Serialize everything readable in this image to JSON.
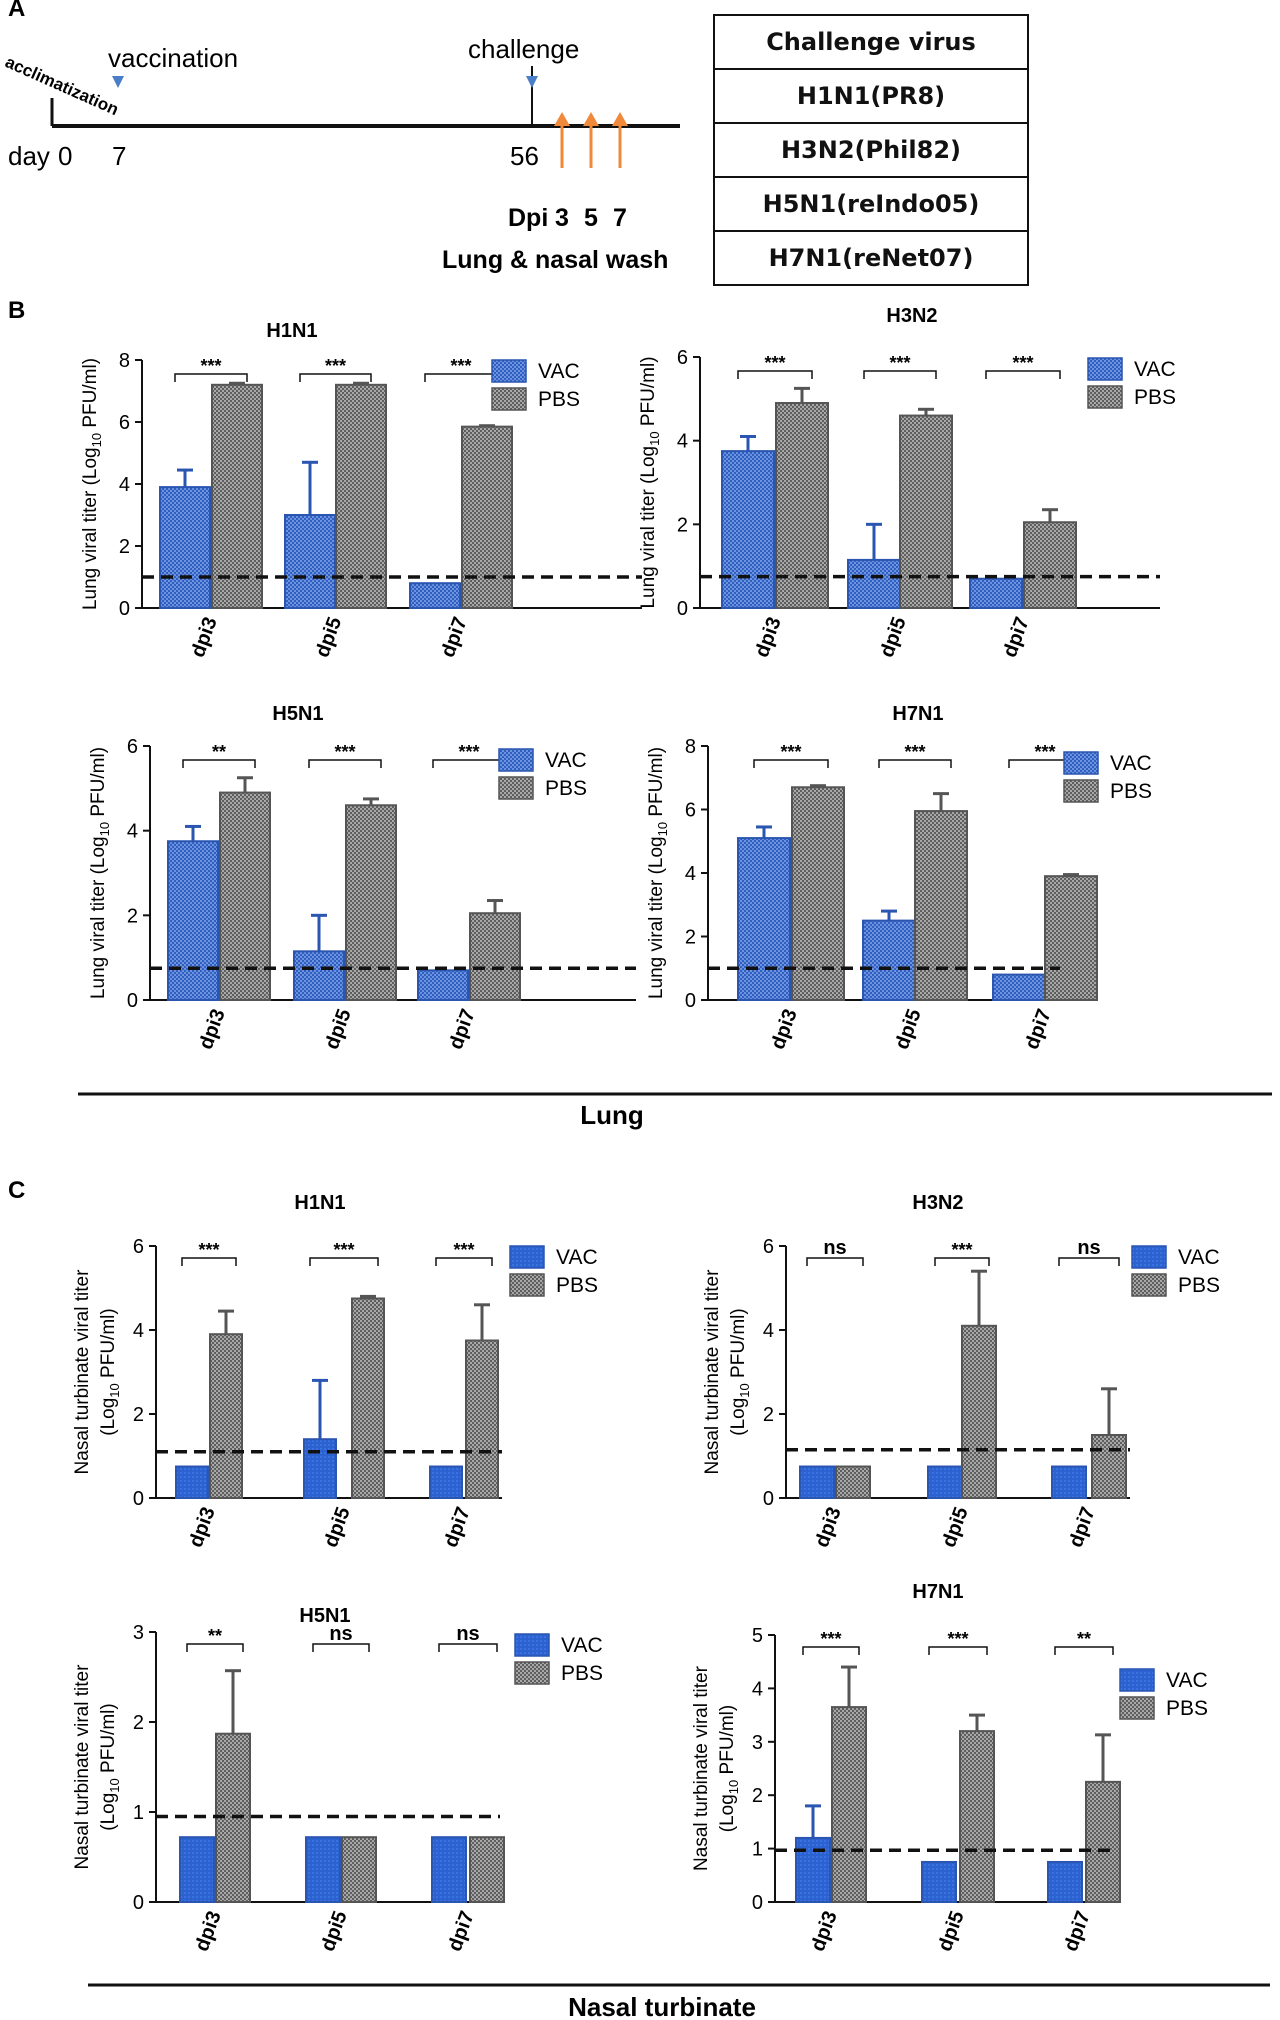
{
  "panels": {
    "a": "A",
    "b": "B",
    "c": "C"
  },
  "timeline": {
    "day_label": "day",
    "days": [
      "0",
      "7",
      "56"
    ],
    "acclimatization": "acclimatization",
    "vaccination": "vaccination",
    "challenge": "challenge",
    "dpi_label": "Dpi",
    "dpi_days": [
      "3",
      "5",
      "7"
    ],
    "sample_label": "Lung & nasal wash"
  },
  "challenge_table": {
    "header": "Challenge virus",
    "rows": [
      "H1N1(PR8)",
      "H3N2(Phil82)",
      "H5N1(reIndo05)",
      "H7N1(reNet07)"
    ]
  },
  "section_labels": {
    "lung": "Lung",
    "nasal": "Nasal turbinate"
  },
  "colors": {
    "vac": "#2f5fbf",
    "pbs": "#666666",
    "line": "#111111"
  },
  "chart_data": [
    {
      "type": "bar",
      "title": "H1N1",
      "section": "Lung",
      "ylabel": "Lung viral titer (Log10 PFU/ml)",
      "ylim": [
        0,
        8
      ],
      "yticks": [
        0,
        2,
        4,
        6,
        8
      ],
      "categories": [
        "dpi3",
        "dpi5",
        "dpi7"
      ],
      "threshold": 1.0,
      "legend": "top-right",
      "series": [
        {
          "name": "VAC",
          "values": [
            3.9,
            3.0,
            0.8
          ],
          "errors": [
            0.55,
            1.7,
            0
          ]
        },
        {
          "name": "PBS",
          "values": [
            7.2,
            7.2,
            5.85
          ],
          "errors": [
            0.05,
            0.05,
            0.03
          ]
        }
      ],
      "significance": [
        "***",
        "***",
        "***"
      ]
    },
    {
      "type": "bar",
      "title": "H3N2",
      "section": "Lung",
      "ylabel": "Lung viral titer (Log10 PFU/ml)",
      "ylim": [
        0,
        6
      ],
      "yticks": [
        0,
        2,
        4,
        6
      ],
      "categories": [
        "dpi3",
        "dpi5",
        "dpi7"
      ],
      "threshold": 0.75,
      "legend": "top-right",
      "series": [
        {
          "name": "VAC",
          "values": [
            3.75,
            1.15,
            0.7
          ],
          "errors": [
            0.35,
            0.85,
            0
          ]
        },
        {
          "name": "PBS",
          "values": [
            4.9,
            4.6,
            2.05
          ],
          "errors": [
            0.35,
            0.15,
            0.3
          ]
        }
      ],
      "significance": [
        "***",
        "***",
        "***"
      ]
    },
    {
      "type": "bar",
      "title": "H5N1",
      "section": "Lung",
      "ylabel": "Lung viral titer (Log10 PFU/ml)",
      "ylim": [
        0,
        6
      ],
      "yticks": [
        0,
        2,
        4,
        6
      ],
      "categories": [
        "dpi3",
        "dpi5",
        "dpi7"
      ],
      "threshold": 0.75,
      "legend": "top-right",
      "series": [
        {
          "name": "VAC",
          "values": [
            3.75,
            1.15,
            0.7
          ],
          "errors": [
            0.35,
            0.85,
            0
          ]
        },
        {
          "name": "PBS",
          "values": [
            4.9,
            4.6,
            2.05
          ],
          "errors": [
            0.35,
            0.15,
            0.3
          ]
        }
      ],
      "significance": [
        "**",
        "***",
        "***"
      ]
    },
    {
      "type": "bar",
      "title": "H7N1",
      "section": "Lung",
      "ylabel": "Lung viral titer (Log10 PFU/ml)",
      "ylim": [
        0,
        8
      ],
      "yticks": [
        0,
        2,
        4,
        6,
        8
      ],
      "categories": [
        "dpi3",
        "dpi5",
        "dpi7"
      ],
      "threshold": 1.0,
      "legend": "top-right",
      "series": [
        {
          "name": "VAC",
          "values": [
            5.1,
            2.5,
            0.8
          ],
          "errors": [
            0.35,
            0.3,
            0
          ]
        },
        {
          "name": "PBS",
          "values": [
            6.7,
            5.95,
            3.9
          ],
          "errors": [
            0.05,
            0.55,
            0.05
          ]
        }
      ],
      "significance": [
        "***",
        "***",
        "***"
      ]
    },
    {
      "type": "bar",
      "title": "H1N1",
      "section": "Nasal turbinate",
      "ylabel": "Nasal turbinate viral titer (Log10 PFU/ml)",
      "ylim": [
        0,
        6
      ],
      "yticks": [
        0,
        2,
        4,
        6
      ],
      "categories": [
        "dpi3",
        "dpi5",
        "dpi7"
      ],
      "threshold": 1.1,
      "legend": "top-right",
      "series": [
        {
          "name": "VAC",
          "values": [
            0.75,
            1.4,
            0.75
          ],
          "errors": [
            0,
            1.4,
            0
          ]
        },
        {
          "name": "PBS",
          "values": [
            3.9,
            4.75,
            3.75
          ],
          "errors": [
            0.55,
            0.05,
            0.85
          ]
        }
      ],
      "significance": [
        "***",
        "***",
        "***"
      ]
    },
    {
      "type": "bar",
      "title": "H3N2",
      "section": "Nasal turbinate",
      "ylabel": "Nasal turbinate viral titer (Log10 PFU/ml)",
      "ylim": [
        0,
        6
      ],
      "yticks": [
        0,
        2,
        4,
        6
      ],
      "categories": [
        "dpi3",
        "dpi5",
        "dpi7"
      ],
      "threshold": 1.15,
      "legend": "top-right",
      "series": [
        {
          "name": "VAC",
          "values": [
            0.75,
            0.75,
            0.75
          ],
          "errors": [
            0,
            0,
            0
          ]
        },
        {
          "name": "PBS",
          "values": [
            0.75,
            4.1,
            1.5
          ],
          "errors": [
            0,
            1.3,
            1.1
          ]
        }
      ],
      "significance": [
        "ns",
        "***",
        "ns"
      ]
    },
    {
      "type": "bar",
      "title": "H5N1",
      "section": "Nasal turbinate",
      "ylabel": "Nasal turbinate viral titer (Log10 PFU/ml)",
      "ylim": [
        0,
        3
      ],
      "yticks": [
        0,
        1,
        2,
        3
      ],
      "categories": [
        "dpi3",
        "dpi5",
        "dpi7"
      ],
      "threshold": 0.95,
      "legend": "top-right",
      "series": [
        {
          "name": "VAC",
          "values": [
            0.72,
            0.72,
            0.72
          ],
          "errors": [
            0,
            0,
            0
          ]
        },
        {
          "name": "PBS",
          "values": [
            1.87,
            0.72,
            0.72
          ],
          "errors": [
            0.7,
            0,
            0
          ]
        }
      ],
      "significance": [
        "**",
        "ns",
        "ns"
      ]
    },
    {
      "type": "bar",
      "title": "H7N1",
      "section": "Nasal turbinate",
      "ylabel": "Nasal turbinate viral titer (Log10 PFU/ml)",
      "ylim": [
        0,
        5
      ],
      "yticks": [
        0,
        1,
        2,
        3,
        4,
        5
      ],
      "categories": [
        "dpi3",
        "dpi5",
        "dpi7"
      ],
      "threshold": 0.97,
      "legend": "top-right",
      "series": [
        {
          "name": "VAC",
          "values": [
            1.2,
            0.75,
            0.75
          ],
          "errors": [
            0.6,
            0,
            0
          ]
        },
        {
          "name": "PBS",
          "values": [
            3.65,
            3.2,
            2.25
          ],
          "errors": [
            0.75,
            0.3,
            0.88
          ]
        }
      ],
      "significance": [
        "***",
        "***",
        "**"
      ]
    }
  ]
}
